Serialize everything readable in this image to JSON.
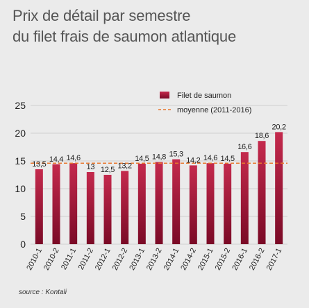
{
  "title_line1": "Prix de détail par semestre",
  "title_line2": "du filet frais de saumon atlantique",
  "source": "source : Kontali",
  "colors": {
    "bar_top": "#c42a4d",
    "bar_bottom": "#7a0a26",
    "mean_line": "#e8772e",
    "axis_text": "#222222",
    "grid": "#cfcfcf"
  },
  "chart_data": {
    "type": "bar",
    "categories": [
      "2010-1",
      "2010-2",
      "2011-1",
      "2011-2",
      "2012-1",
      "2012-2",
      "2013-1",
      "2013-2",
      "2014-1",
      "2014-2",
      "2015-1",
      "2015-2",
      "2016-1",
      "2016-2",
      "2017-1"
    ],
    "value_labels": [
      "13,5",
      "14,4",
      "14,6",
      "13",
      "12,5",
      "13,2",
      "14,5",
      "14,8",
      "15,3",
      "14,2",
      "14,6",
      "14,5",
      "16,6",
      "18,6",
      "20,2"
    ],
    "series": [
      {
        "name": "Filet de saumon",
        "values": [
          13.5,
          14.4,
          14.6,
          13,
          12.5,
          13.2,
          14.5,
          14.8,
          15.3,
          14.2,
          14.6,
          14.5,
          16.6,
          18.6,
          20.2
        ]
      }
    ],
    "reference_line": {
      "name": "moyenne (2011-2016)",
      "value": 14.6,
      "style": "dashed"
    },
    "yticks": [
      "0",
      "5",
      "10",
      "15",
      "20",
      "25"
    ],
    "ylim": [
      0,
      25
    ],
    "grid": true,
    "legend_position": "top-right"
  }
}
